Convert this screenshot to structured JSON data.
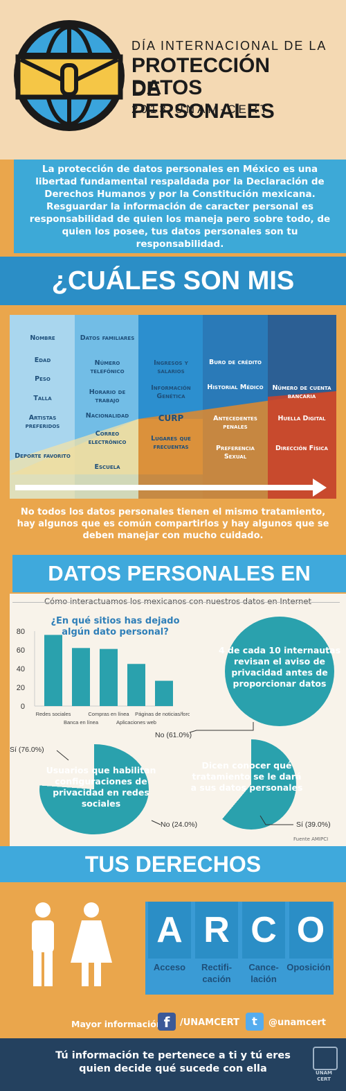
{
  "header": {
    "line1": "DÍA INTERNACIONAL DE LA",
    "line2": "PROTECCIÓN DE",
    "line3": "DATOS PERSONALES",
    "line4": "2013 UNAM-CERT"
  },
  "intro": "La protección de datos personales en México es una libertad fundamental respaldada por la Declaración de Derechos Humanos y por la Constitución mexicana. Resguardar la información de caracter personal es responsabilidad de quien los maneja pero sobre todo, de quien los posee, tus datos personales son tu responsabilidad.",
  "section1_title": "¿CUÁLES SON MIS DATOS?",
  "data_table": {
    "col1": [
      "Nombre",
      "Edad",
      "Peso",
      "Talla",
      "Artistas preferidos",
      "Deporte favorito"
    ],
    "col2": [
      "Datos familiares",
      "Número telefónico",
      "Horario de trabajo",
      "Nacionalidad",
      "Correo electrónico",
      "Escuela"
    ],
    "col3": [
      "Ingresos y salarios",
      "Información Genética",
      "CURP",
      "Lugares que frecuentas"
    ],
    "col4": [
      "Buro de crédito",
      "Historial Médico",
      "Antecedentes penales",
      "Preferencia Sexual"
    ],
    "col5": [
      "Número de cuenta bancaria",
      "Huella Digital",
      "Dirección Física"
    ]
  },
  "note": "No todos los datos personales tienen el mismo tratamiento, hay algunos que es común compartirlos y hay algunos que se deben manejar con mucho cuidado.",
  "section2_title": "DATOS PERSONALES EN MÉXICO:CIFRAS",
  "cifras": {
    "subtitle": "Cómo interactuamos los mexicanos con nuestros datos en Internet",
    "bar_title": "¿En qué sitios has dejado algún dato personal?",
    "stat1": "4 de cada 10 internautas revisan el aviso de privacidad antes de proporcionar datos",
    "pie1_text": "Usuarios que habilitan configuraciones de privacidad en redes sociales",
    "pie1_yes": "Sí (76.0%)",
    "pie1_no": "No (24.0%)",
    "pie2_text": "Dicen conocer qué tratamiento se le dará a sus datos personales",
    "pie2_no": "No (61.0%)",
    "pie2_yes": "Sí (39.0%)",
    "source": "Fuente AMIPCI"
  },
  "chart_data": {
    "type": "bar",
    "title": "¿En qué sitios has dejado algún dato personal?",
    "categories": [
      "Redes sociales",
      "Banca en línea",
      "Compras en línea",
      "Aplicaciones web",
      "Páginas de noticias/foros"
    ],
    "values": [
      76,
      62,
      61,
      45,
      27
    ],
    "ylim": [
      0,
      80
    ],
    "yticks": [
      0,
      20,
      40,
      60,
      80
    ],
    "bar_color": "#2aa1ad"
  },
  "section3_title": "TUS DERECHOS",
  "arco": {
    "letters": [
      "A",
      "R",
      "C",
      "O"
    ],
    "words": [
      "Acceso",
      "Rectifi-\ncación",
      "Cance-\nlación",
      "Oposición"
    ]
  },
  "more_info": {
    "label": "Mayor información",
    "facebook": "/UNAMCERT",
    "twitter": "@unamcert"
  },
  "footer": {
    "text": "Tú información te pertenece a ti y tú eres quien decide qué sucede con ella",
    "logo_text": "UNAM CERT"
  }
}
